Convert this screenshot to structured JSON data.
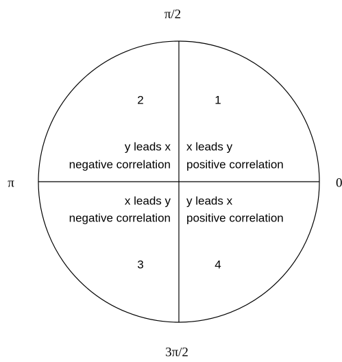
{
  "axis_labels": {
    "top": "π/2",
    "bottom": "3π/2",
    "left": "π",
    "right": "0"
  },
  "quadrants": [
    {
      "number": "1",
      "lines": [
        "x leads y",
        "positive correlation"
      ]
    },
    {
      "number": "2",
      "lines": [
        "y leads x",
        "negative correlation"
      ]
    },
    {
      "number": "3",
      "lines": [
        "x leads y",
        "negative correlation"
      ]
    },
    {
      "number": "4",
      "lines": [
        "y leads x",
        "positive correlation"
      ]
    }
  ]
}
